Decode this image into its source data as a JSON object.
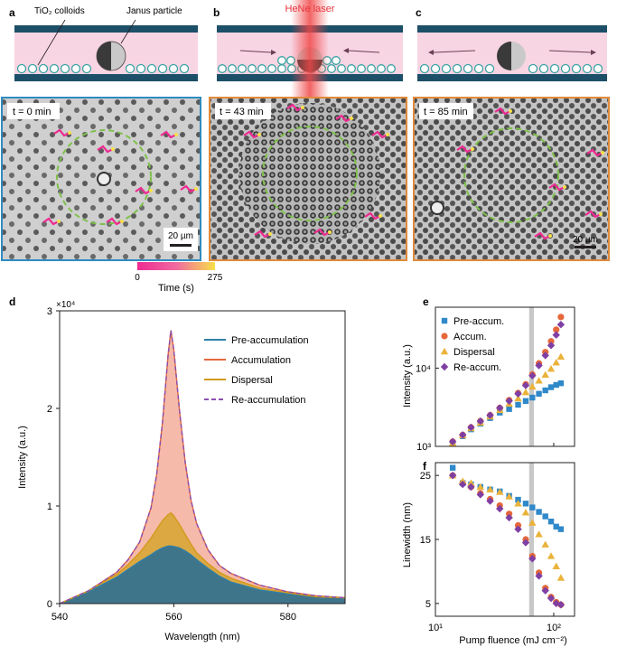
{
  "panels": {
    "a": {
      "label": "a",
      "time": "t = 0 min",
      "colloids_label": "TiO₂ colloids",
      "janus_label": "Janus particle",
      "scale_bar": "20 µm"
    },
    "b": {
      "label": "b",
      "time": "t = 43 min",
      "laser_label": "HeNe laser"
    },
    "c": {
      "label": "c",
      "time": "t = 85 min",
      "scale_bar": "20 µm"
    }
  },
  "colorbar": {
    "min_label": "0",
    "max_label": "275",
    "title": "Time (s)"
  },
  "colors": {
    "channel_wall": "#1d4f68",
    "channel_fill": "#f8d5e3",
    "colloid": "#3aa3a3",
    "laser": "#e8343c",
    "frame_a": "#2e8bc0",
    "frame_bc": "#e08a3c",
    "ring": "#7ec04a"
  },
  "chart_data": [
    {
      "id": "d",
      "type": "area",
      "label": "d",
      "xlabel": "Wavelength (nm)",
      "ylabel": "Intensity (a.u.)",
      "exponent_label": "×10⁴",
      "xlim": [
        540,
        590
      ],
      "ylim": [
        0,
        3
      ],
      "xticks": [
        "540",
        "560",
        "580"
      ],
      "yticks": [
        "0",
        "1",
        "2",
        "3"
      ],
      "legend_position": "top-right",
      "x": [
        540,
        545,
        550,
        552,
        554,
        556,
        557,
        558,
        559,
        559.5,
        560,
        561,
        562,
        563,
        564,
        566,
        568,
        570,
        575,
        580,
        585,
        590
      ],
      "series": [
        {
          "name": "Pre-accumulation",
          "color": "#2f7fa8",
          "values": [
            0,
            0.12,
            0.27,
            0.35,
            0.43,
            0.5,
            0.54,
            0.57,
            0.59,
            0.59,
            0.585,
            0.57,
            0.54,
            0.5,
            0.45,
            0.36,
            0.28,
            0.22,
            0.14,
            0.1,
            0.07,
            0.06
          ]
        },
        {
          "name": "Accumulation",
          "color": "#e5683a",
          "values": [
            0,
            0.13,
            0.32,
            0.45,
            0.63,
            0.98,
            1.32,
            1.85,
            2.55,
            2.8,
            2.6,
            1.98,
            1.45,
            1.06,
            0.82,
            0.55,
            0.39,
            0.31,
            0.19,
            0.12,
            0.08,
            0.06
          ]
        },
        {
          "name": "Dispersal",
          "color": "#d39a1c",
          "values": [
            0,
            0.13,
            0.3,
            0.4,
            0.52,
            0.67,
            0.76,
            0.85,
            0.91,
            0.93,
            0.9,
            0.81,
            0.71,
            0.61,
            0.52,
            0.41,
            0.32,
            0.26,
            0.16,
            0.11,
            0.07,
            0.06
          ]
        },
        {
          "name": "Re-accumulation",
          "color": "#8b4fb0",
          "dashed": true,
          "values": [
            0,
            0.13,
            0.32,
            0.45,
            0.63,
            0.98,
            1.32,
            1.85,
            2.55,
            2.8,
            2.6,
            1.98,
            1.45,
            1.06,
            0.82,
            0.55,
            0.39,
            0.31,
            0.19,
            0.12,
            0.08,
            0.06
          ]
        }
      ]
    },
    {
      "id": "e",
      "type": "scatter",
      "label": "e",
      "xlabel": "Pump fluence (mJ cm⁻²)",
      "ylabel": "Intensity (a.u.)",
      "xscale": "log",
      "yscale": "log",
      "xlim": [
        10,
        150
      ],
      "ylim": [
        1000,
        60000
      ],
      "yticks": [
        "10³",
        "10⁴"
      ],
      "legend_position": "top-left",
      "shaded_x": [
        62,
        68
      ],
      "series": [
        {
          "name": "Pre-accum.",
          "marker": "square",
          "color": "#2f88c9",
          "x": [
            14,
            17,
            20,
            24,
            29,
            35,
            42,
            50,
            58,
            66,
            75,
            85,
            95,
            105,
            115
          ],
          "y": [
            1100,
            1350,
            1650,
            1950,
            2300,
            2700,
            3000,
            3400,
            3800,
            4200,
            4700,
            5200,
            5700,
            6100,
            6400
          ]
        },
        {
          "name": "Accum.",
          "marker": "circle",
          "color": "#e5683a",
          "x": [
            14,
            17,
            20,
            24,
            29,
            35,
            42,
            50,
            58,
            66,
            75,
            85,
            95,
            105,
            115
          ],
          "y": [
            1150,
            1400,
            1750,
            2100,
            2500,
            3100,
            3900,
            4800,
            6200,
            8300,
            11500,
            16000,
            22000,
            31000,
            45000
          ]
        },
        {
          "name": "Dispersal",
          "marker": "triangle",
          "color": "#eab33a",
          "x": [
            14,
            17,
            20,
            24,
            29,
            35,
            42,
            50,
            58,
            66,
            75,
            85,
            95,
            105,
            115
          ],
          "y": [
            1100,
            1380,
            1700,
            2000,
            2400,
            2900,
            3500,
            4100,
            4900,
            5800,
            6900,
            8200,
            9800,
            11800,
            14000
          ]
        },
        {
          "name": "Re-accum.",
          "marker": "diamond",
          "color": "#7f3fa3",
          "x": [
            14,
            17,
            20,
            24,
            29,
            35,
            42,
            50,
            58,
            66,
            75,
            85,
            95,
            105,
            115
          ],
          "y": [
            1150,
            1400,
            1750,
            2100,
            2500,
            3100,
            3800,
            4700,
            6000,
            8000,
            10800,
            14500,
            19500,
            26500,
            36000
          ]
        }
      ]
    },
    {
      "id": "f",
      "type": "scatter",
      "label": "f",
      "xlabel": "Pump fluence (mJ cm⁻²)",
      "ylabel": "Linewidth (nm)",
      "xscale": "log",
      "xlim": [
        10,
        150
      ],
      "ylim": [
        3,
        27
      ],
      "xticks": [
        "10¹",
        "10²"
      ],
      "yticks": [
        "5",
        "15",
        "25"
      ],
      "shaded_x": [
        62,
        68
      ],
      "series": [
        {
          "name": "Pre-accum.",
          "marker": "square",
          "color": "#2f88c9",
          "x": [
            14,
            17,
            20,
            24,
            29,
            35,
            42,
            50,
            58,
            66,
            75,
            85,
            95,
            105,
            115
          ],
          "y": [
            26.2,
            23.8,
            23.6,
            23.2,
            22.8,
            22.5,
            21.8,
            21.2,
            20.6,
            20.0,
            19.3,
            18.6,
            17.8,
            17.0,
            16.6
          ]
        },
        {
          "name": "Accum.",
          "marker": "circle",
          "color": "#e5683a",
          "x": [
            14,
            17,
            20,
            24,
            29,
            35,
            42,
            50,
            58,
            66,
            75,
            85,
            95,
            105,
            115
          ],
          "y": [
            25.0,
            23.8,
            23.2,
            22.2,
            21.3,
            20.3,
            19.0,
            17.2,
            15.0,
            12.4,
            9.8,
            7.4,
            6.0,
            5.2,
            4.8
          ]
        },
        {
          "name": "Dispersal",
          "marker": "triangle",
          "color": "#eab33a",
          "x": [
            14,
            17,
            20,
            24,
            29,
            35,
            42,
            50,
            58,
            66,
            75,
            85,
            95,
            105,
            115
          ],
          "y": [
            25.0,
            24.1,
            23.8,
            23.2,
            22.8,
            22.4,
            21.7,
            20.6,
            19.2,
            17.6,
            15.8,
            14.2,
            12.4,
            10.8,
            9.0
          ]
        },
        {
          "name": "Re-accum.",
          "marker": "diamond",
          "color": "#7f3fa3",
          "x": [
            14,
            17,
            20,
            24,
            29,
            35,
            42,
            50,
            58,
            66,
            75,
            85,
            95,
            105,
            115
          ],
          "y": [
            25.0,
            23.6,
            23.2,
            22.0,
            21.0,
            19.8,
            18.4,
            16.6,
            14.5,
            12.0,
            9.3,
            7.0,
            5.8,
            5.0,
            4.8
          ]
        }
      ]
    }
  ]
}
